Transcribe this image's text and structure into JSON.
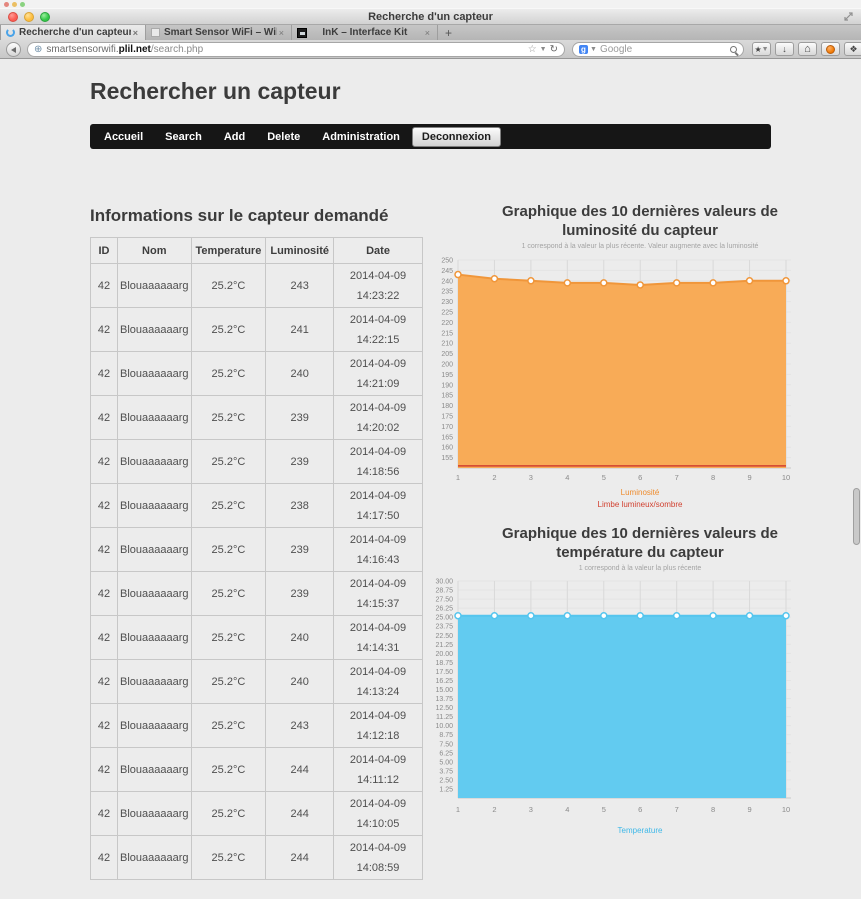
{
  "window": {
    "title": "Recherche d'un capteur"
  },
  "browser": {
    "tabs": [
      {
        "title": "Recherche d'un capteur",
        "favicon": "spinner-icon",
        "active": true
      },
      {
        "title": "Smart Sensor WiFi – Wiki de Pro...",
        "favicon": "document-icon",
        "active": false
      },
      {
        "title": "InK – Interface Kit",
        "favicon": "ink-icon",
        "active": false
      }
    ],
    "new_tab_label": "+",
    "close_label": "×",
    "url": {
      "host_prefix": "smartsensorwifi.",
      "host_bold": "plil.net",
      "path": "/search.php"
    },
    "search": {
      "engine": "Google"
    }
  },
  "page": {
    "heading": "Rechercher un capteur",
    "nav_items": [
      "Accueil",
      "Search",
      "Add",
      "Delete",
      "Administration"
    ],
    "logout_label": "Deconnexion",
    "section_heading": "Informations sur le capteur demandé",
    "table": {
      "columns": [
        "ID",
        "Nom",
        "Temperature",
        "Luminosité",
        "Date"
      ],
      "rows": [
        {
          "id": "42",
          "nom": "Blouaaaaaarg",
          "temperature": "25.2°C",
          "luminosite": "243",
          "date": "2014-04-09",
          "time": "14:23:22"
        },
        {
          "id": "42",
          "nom": "Blouaaaaaarg",
          "temperature": "25.2°C",
          "luminosite": "241",
          "date": "2014-04-09",
          "time": "14:22:15"
        },
        {
          "id": "42",
          "nom": "Blouaaaaaarg",
          "temperature": "25.2°C",
          "luminosite": "240",
          "date": "2014-04-09",
          "time": "14:21:09"
        },
        {
          "id": "42",
          "nom": "Blouaaaaaarg",
          "temperature": "25.2°C",
          "luminosite": "239",
          "date": "2014-04-09",
          "time": "14:20:02"
        },
        {
          "id": "42",
          "nom": "Blouaaaaaarg",
          "temperature": "25.2°C",
          "luminosite": "239",
          "date": "2014-04-09",
          "time": "14:18:56"
        },
        {
          "id": "42",
          "nom": "Blouaaaaaarg",
          "temperature": "25.2°C",
          "luminosite": "238",
          "date": "2014-04-09",
          "time": "14:17:50"
        },
        {
          "id": "42",
          "nom": "Blouaaaaaarg",
          "temperature": "25.2°C",
          "luminosite": "239",
          "date": "2014-04-09",
          "time": "14:16:43"
        },
        {
          "id": "42",
          "nom": "Blouaaaaaarg",
          "temperature": "25.2°C",
          "luminosite": "239",
          "date": "2014-04-09",
          "time": "14:15:37"
        },
        {
          "id": "42",
          "nom": "Blouaaaaaarg",
          "temperature": "25.2°C",
          "luminosite": "240",
          "date": "2014-04-09",
          "time": "14:14:31"
        },
        {
          "id": "42",
          "nom": "Blouaaaaaarg",
          "temperature": "25.2°C",
          "luminosite": "240",
          "date": "2014-04-09",
          "time": "14:13:24"
        },
        {
          "id": "42",
          "nom": "Blouaaaaaarg",
          "temperature": "25.2°C",
          "luminosite": "243",
          "date": "2014-04-09",
          "time": "14:12:18"
        },
        {
          "id": "42",
          "nom": "Blouaaaaaarg",
          "temperature": "25.2°C",
          "luminosite": "244",
          "date": "2014-04-09",
          "time": "14:11:12"
        },
        {
          "id": "42",
          "nom": "Blouaaaaaarg",
          "temperature": "25.2°C",
          "luminosite": "244",
          "date": "2014-04-09",
          "time": "14:10:05"
        },
        {
          "id": "42",
          "nom": "Blouaaaaaarg",
          "temperature": "25.2°C",
          "luminosite": "244",
          "date": "2014-04-09",
          "time": "14:08:59"
        }
      ]
    }
  },
  "chart_data": [
    {
      "type": "area",
      "title": "Graphique des 10 dernières valeurs de luminosité du capteur",
      "subtitle": "1 correspond à la valeur la plus récente. Valeur augmente avec la luminosité",
      "x": [
        1,
        2,
        3,
        4,
        5,
        6,
        7,
        8,
        9,
        10
      ],
      "ylim": [
        150,
        250
      ],
      "ytick_start": 155,
      "ytick_step": 5,
      "ydecimals": 0,
      "grid": true,
      "legend_position": "bottom",
      "series": [
        {
          "name": "Luminosité",
          "type": "area",
          "values": [
            243,
            241,
            240,
            239,
            239,
            238,
            239,
            239,
            240,
            240
          ],
          "fill": "#f8ab57",
          "line": "#f0963a",
          "legend_color": "#ee8c2e"
        },
        {
          "name": "Limbe lumineux/sombre",
          "type": "threshold",
          "value": 151,
          "line": "#d14130",
          "legend_color": "#d14130"
        }
      ]
    },
    {
      "type": "area",
      "title": "Graphique des 10 dernières valeurs de température du capteur",
      "subtitle": "1 correspond à la valeur la plus récente",
      "x": [
        1,
        2,
        3,
        4,
        5,
        6,
        7,
        8,
        9,
        10
      ],
      "ylim": [
        0,
        30
      ],
      "ytick_start": 1.25,
      "ytick_step": 1.25,
      "ydecimals": 2,
      "grid": true,
      "legend_position": "bottom",
      "series": [
        {
          "name": "Temperature",
          "type": "area",
          "values": [
            25.2,
            25.2,
            25.2,
            25.2,
            25.2,
            25.2,
            25.2,
            25.2,
            25.2,
            25.2
          ],
          "fill": "#62cbf0",
          "line": "#55c5ee",
          "legend_color": "#3eb8e8"
        }
      ]
    }
  ]
}
